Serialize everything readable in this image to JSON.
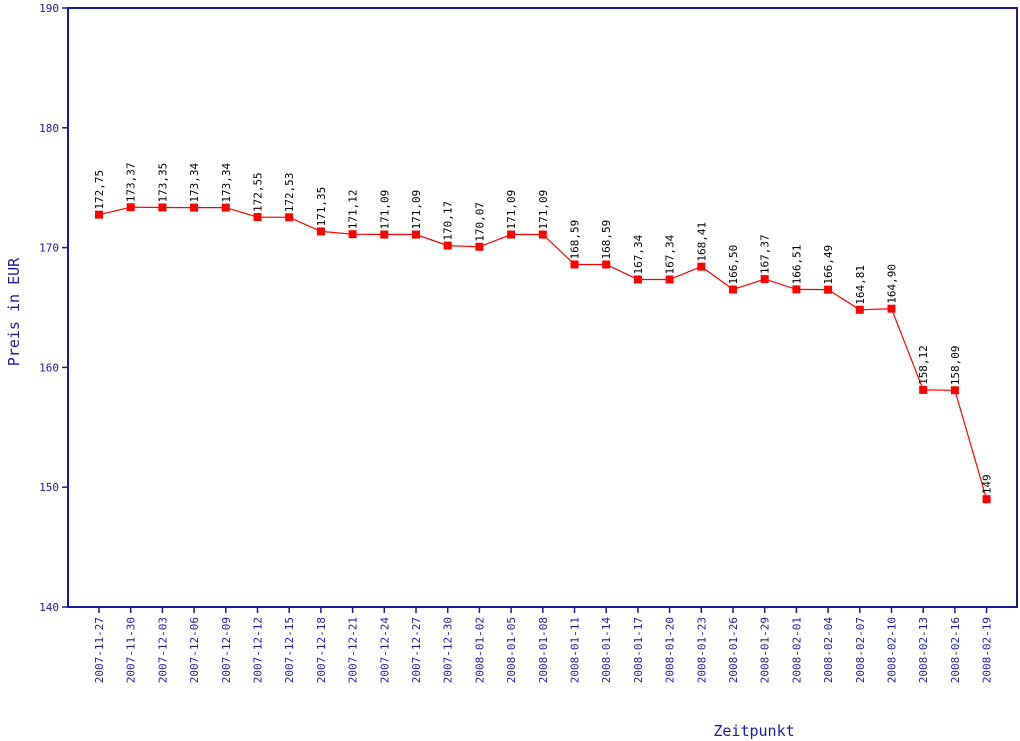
{
  "chart_data": {
    "type": "line",
    "title": "",
    "xlabel": "Zeitpunkt",
    "ylabel": "Preis in EUR",
    "ylim": [
      140,
      190
    ],
    "yticks": [
      "140",
      "150",
      "160",
      "170",
      "180",
      "190"
    ],
    "grid": false,
    "legend": "none",
    "colors": {
      "axis": "#1a1aa0",
      "series": "#ff0000",
      "labels": "#000000"
    },
    "categories": [
      "2007-11-27",
      "2007-11-30",
      "2007-12-03",
      "2007-12-06",
      "2007-12-09",
      "2007-12-12",
      "2007-12-15",
      "2007-12-18",
      "2007-12-21",
      "2007-12-24",
      "2007-12-27",
      "2007-12-30",
      "2008-01-02",
      "2008-01-05",
      "2008-01-08",
      "2008-01-11",
      "2008-01-14",
      "2008-01-17",
      "2008-01-20",
      "2008-01-23",
      "2008-01-26",
      "2008-01-29",
      "2008-02-01",
      "2008-02-04",
      "2008-02-07",
      "2008-02-10",
      "2008-02-13",
      "2008-02-16",
      "2008-02-19"
    ],
    "values": [
      172.75,
      173.37,
      173.35,
      173.34,
      173.34,
      172.55,
      172.53,
      171.35,
      171.12,
      171.09,
      171.09,
      170.17,
      170.07,
      171.09,
      171.09,
      168.59,
      168.59,
      167.34,
      167.34,
      168.41,
      166.5,
      167.37,
      166.51,
      166.49,
      164.81,
      164.9,
      158.12,
      158.09,
      149
    ],
    "value_labels": [
      "172,75",
      "173,37",
      "173,35",
      "173,34",
      "173,34",
      "172,55",
      "172,53",
      "171,35",
      "171,12",
      "171,09",
      "171,09",
      "170,17",
      "170,07",
      "171,09",
      "171,09",
      "168,59",
      "168,59",
      "167,34",
      "167,34",
      "168,41",
      "166,50",
      "167,37",
      "166,51",
      "166,49",
      "164,81",
      "164,90",
      "158,12",
      "158,09",
      "149"
    ]
  }
}
